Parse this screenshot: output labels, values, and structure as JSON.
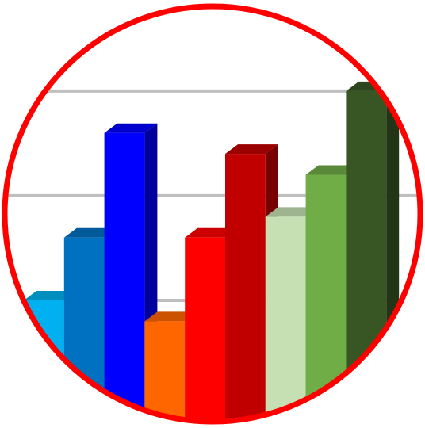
{
  "chart_data": {
    "type": "bar",
    "categories": [
      null,
      null,
      null,
      null,
      null,
      null,
      null,
      null,
      null
    ],
    "values": [
      1.0,
      1.6,
      2.6,
      0.8,
      1.6,
      2.4,
      1.8,
      2.2,
      3.0
    ],
    "colors": [
      "#00b0f0",
      "#0070c0",
      "#0000ff",
      "#ff6600",
      "#ff0000",
      "#c00000",
      "#c6e0b4",
      "#70ad47",
      "#375623"
    ],
    "ylim": [
      0,
      3.87
    ],
    "yticks": [
      1,
      2,
      3
    ],
    "grid": true,
    "frame_color": "#ff0000"
  }
}
